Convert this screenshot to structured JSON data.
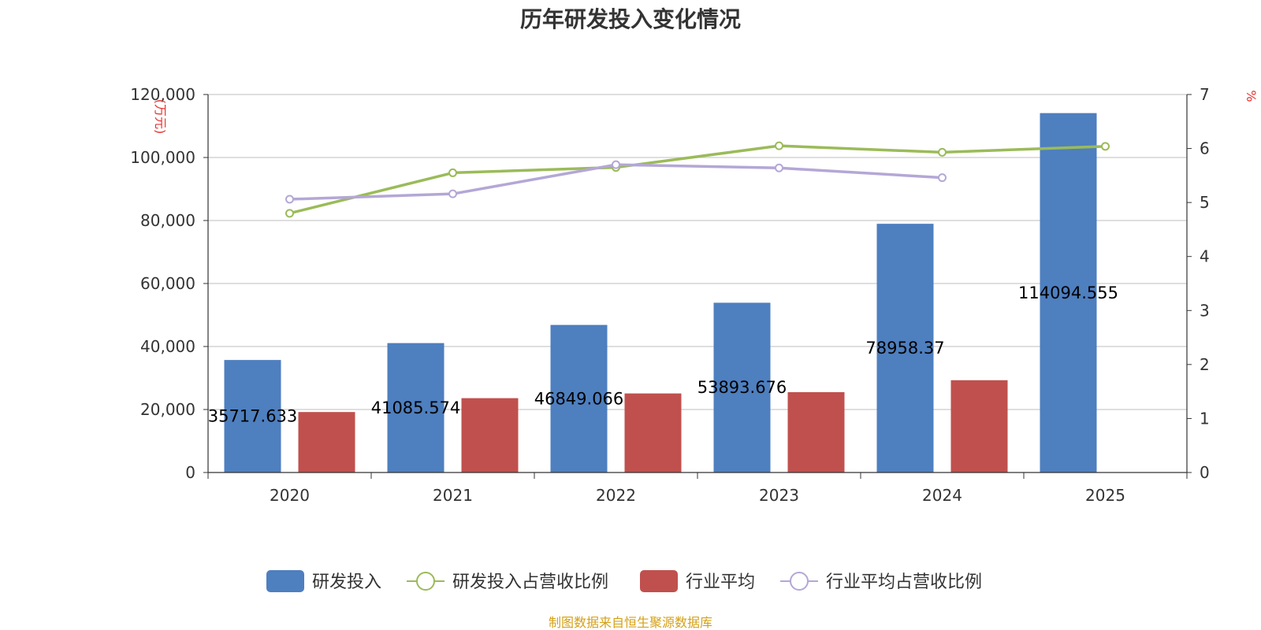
{
  "chart_data": {
    "type": "bar",
    "title": "历年研发投入变化情况",
    "categories": [
      "2020",
      "2021",
      "2022",
      "2023",
      "2024",
      "2025"
    ],
    "y_left": {
      "label": "(万元)",
      "range": [
        0,
        120000
      ],
      "ticks": [
        "0",
        "20,000",
        "40,000",
        "60,000",
        "80,000",
        "100,000",
        "120,000"
      ],
      "tick_values": [
        0,
        20000,
        40000,
        60000,
        80000,
        100000,
        120000
      ]
    },
    "y_right": {
      "label": "%",
      "range": [
        0,
        7
      ],
      "ticks": [
        "0",
        "1",
        "2",
        "3",
        "4",
        "5",
        "6",
        "7"
      ],
      "tick_values": [
        0,
        1,
        2,
        3,
        4,
        5,
        6,
        7
      ]
    },
    "series": [
      {
        "name": "研发投入",
        "kind": "bar",
        "axis": "left",
        "color": "#4e7fbf",
        "values": [
          35717.633,
          41085.574,
          46849.066,
          53893.676,
          78958.37,
          114094.555
        ],
        "labels": [
          "35717.633",
          "41085.574",
          "46849.066",
          "53893.676",
          "78958.37",
          "114094.555"
        ]
      },
      {
        "name": "研发投入占营收比例",
        "kind": "line",
        "axis": "right",
        "color": "#9bbb59",
        "values": [
          4.8,
          5.55,
          5.65,
          6.05,
          5.93,
          6.04
        ]
      },
      {
        "name": "行业平均",
        "kind": "bar",
        "axis": "left",
        "color": "#c0504d",
        "values": [
          19200,
          23600,
          25100,
          25500,
          29300,
          null
        ]
      },
      {
        "name": "行业平均占营收比例",
        "kind": "line",
        "axis": "right",
        "color": "#b4a7d6",
        "values": [
          5.06,
          5.16,
          5.7,
          5.64,
          5.46,
          null
        ]
      }
    ],
    "legend": {
      "position": "bottom"
    },
    "grid": true
  },
  "source": "制图数据来自恒生聚源数据库"
}
